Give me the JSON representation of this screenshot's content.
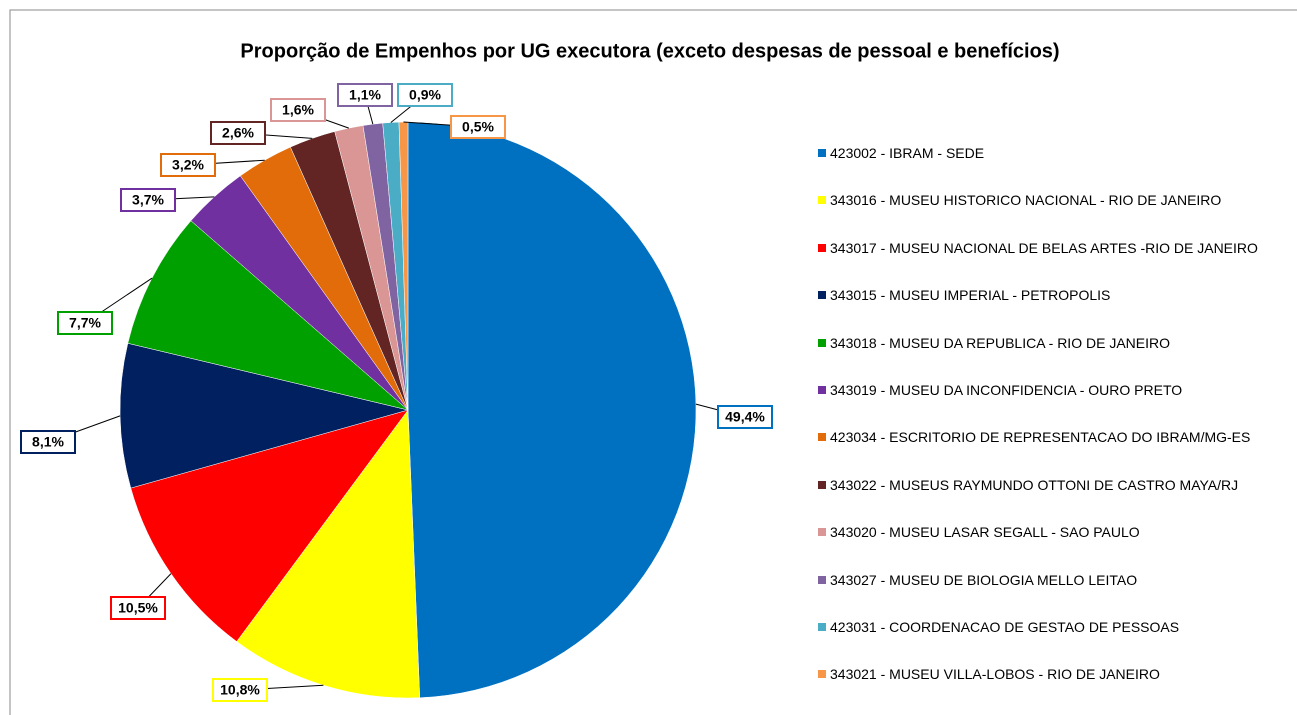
{
  "chart_data": {
    "type": "pie",
    "title": "Proporção de Empenhos por UG executora (exceto despesas de pessoal e benefícios)",
    "legend": "right",
    "categories": [
      "423002 - IBRAM - SEDE",
      "343016 - MUSEU HISTORICO NACIONAL - RIO DE JANEIRO",
      "343017 - MUSEU NACIONAL DE BELAS ARTES -RIO DE JANEIRO",
      "343015 - MUSEU IMPERIAL - PETROPOLIS",
      "343018 - MUSEU DA REPUBLICA - RIO DE JANEIRO",
      "343019 - MUSEU DA INCONFIDENCIA - OURO PRETO",
      "423034 - ESCRITORIO DE REPRESENTACAO DO IBRAM/MG-ES",
      "343022 - MUSEUS RAYMUNDO OTTONI DE CASTRO MAYA/RJ",
      "343020 - MUSEU LASAR SEGALL - SAO PAULO",
      "343027 - MUSEU DE BIOLOGIA MELLO LEITAO",
      "423031 - COORDENACAO DE GESTAO DE PESSOAS",
      "343021 - MUSEU VILLA-LOBOS - RIO DE JANEIRO"
    ],
    "values": [
      49.4,
      10.8,
      10.5,
      8.1,
      7.7,
      3.7,
      3.2,
      2.6,
      1.6,
      1.1,
      0.9,
      0.5
    ],
    "value_labels": [
      "49,4%",
      "10,8%",
      "10,5%",
      "8,1%",
      "7,7%",
      "3,7%",
      "3,2%",
      "2,6%",
      "1,6%",
      "1,1%",
      "0,9%",
      "0,5%"
    ],
    "colors": [
      "#0070c0",
      "#ffff00",
      "#ff0000",
      "#002060",
      "#00a000",
      "#7030a0",
      "#e36c0a",
      "#632523",
      "#d99694",
      "#8064a2",
      "#4bacc6",
      "#f79646"
    ]
  }
}
